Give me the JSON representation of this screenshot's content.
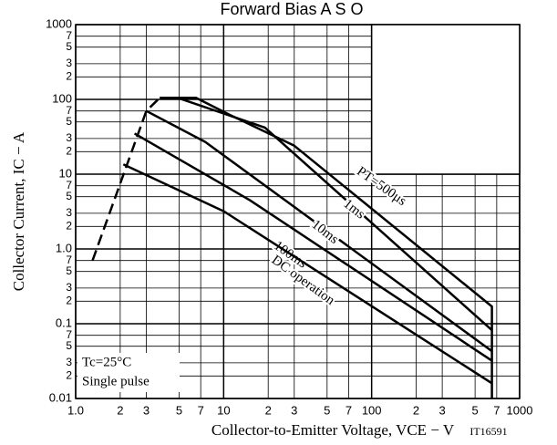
{
  "chart_data": {
    "type": "line",
    "title": "Forward Bias A S O",
    "x_label": "Collector-to-Emitter Voltage, VCE − V",
    "y_label": "Collector Current, IC − A",
    "code": "IT16591",
    "annotations": [
      "Tc=25°C",
      "Single pulse"
    ],
    "log_x": true,
    "log_y": true,
    "grid": true,
    "xlim": [
      1,
      1000
    ],
    "ylim": [
      0.01,
      1000
    ],
    "xticks": [
      {
        "value": 1,
        "label": "1.0"
      },
      {
        "value": 2,
        "label": "2"
      },
      {
        "value": 3,
        "label": "3"
      },
      {
        "value": 5,
        "label": "5"
      },
      {
        "value": 7,
        "label": "7"
      },
      10,
      {
        "value": 20,
        "label": "2"
      },
      {
        "value": 30,
        "label": "3"
      },
      {
        "value": 50,
        "label": "5"
      },
      {
        "value": 70,
        "label": "7"
      },
      100,
      {
        "value": 200,
        "label": "2"
      },
      {
        "value": 300,
        "label": "3"
      },
      {
        "value": 500,
        "label": "5"
      },
      {
        "value": 700,
        "label": "7"
      },
      1000
    ],
    "yticks": [
      0.01,
      {
        "value": 0.02,
        "label": "2"
      },
      {
        "value": 0.03,
        "label": "3"
      },
      {
        "value": 0.05,
        "label": "5"
      },
      {
        "value": 0.07,
        "label": "7"
      },
      0.1,
      {
        "value": 0.2,
        "label": "2"
      },
      {
        "value": 0.3,
        "label": "3"
      },
      {
        "value": 0.5,
        "label": "5"
      },
      {
        "value": 0.7,
        "label": "7"
      },
      {
        "value": 1,
        "label": "1.0"
      },
      {
        "value": 2,
        "label": "2"
      },
      {
        "value": 3,
        "label": "3"
      },
      {
        "value": 5,
        "label": "5"
      },
      {
        "value": 7,
        "label": "7"
      },
      10,
      {
        "value": 20,
        "label": "2"
      },
      {
        "value": 30,
        "label": "3"
      },
      {
        "value": 50,
        "label": "5"
      },
      {
        "value": 70,
        "label": "7"
      },
      100,
      {
        "value": 200,
        "label": "2"
      },
      {
        "value": 300,
        "label": "3"
      },
      {
        "value": 500,
        "label": "5"
      },
      {
        "value": 700,
        "label": "7"
      },
      1000
    ],
    "series": [
      {
        "name": "PT=500μs",
        "color": "#000000",
        "x": [
          3.7,
          6.5,
          11,
          30,
          650,
          650
        ],
        "values": [
          105,
          105,
          62,
          24,
          0.17,
          0.01
        ]
      },
      {
        "name": "1ms",
        "color": "#000000",
        "x": [
          4.9,
          19,
          650
        ],
        "values": [
          105,
          42,
          0.082
        ]
      },
      {
        "name": "10ms",
        "color": "#000000",
        "x": [
          3,
          7.5,
          650
        ],
        "values": [
          70,
          27,
          0.043
        ]
      },
      {
        "name": "100ms",
        "color": "#000000",
        "x": [
          2.5,
          15,
          650
        ],
        "values": [
          35,
          4.5,
          0.032
        ]
      },
      {
        "name": "DC operation",
        "color": "#000000",
        "x": [
          2.1,
          10,
          650
        ],
        "values": [
          13.5,
          3.2,
          0.016
        ]
      },
      {
        "color": "#000000",
        "dashed": true,
        "x": [
          1.3,
          3,
          3.7
        ],
        "values": [
          0.7,
          70,
          105
        ]
      }
    ]
  }
}
